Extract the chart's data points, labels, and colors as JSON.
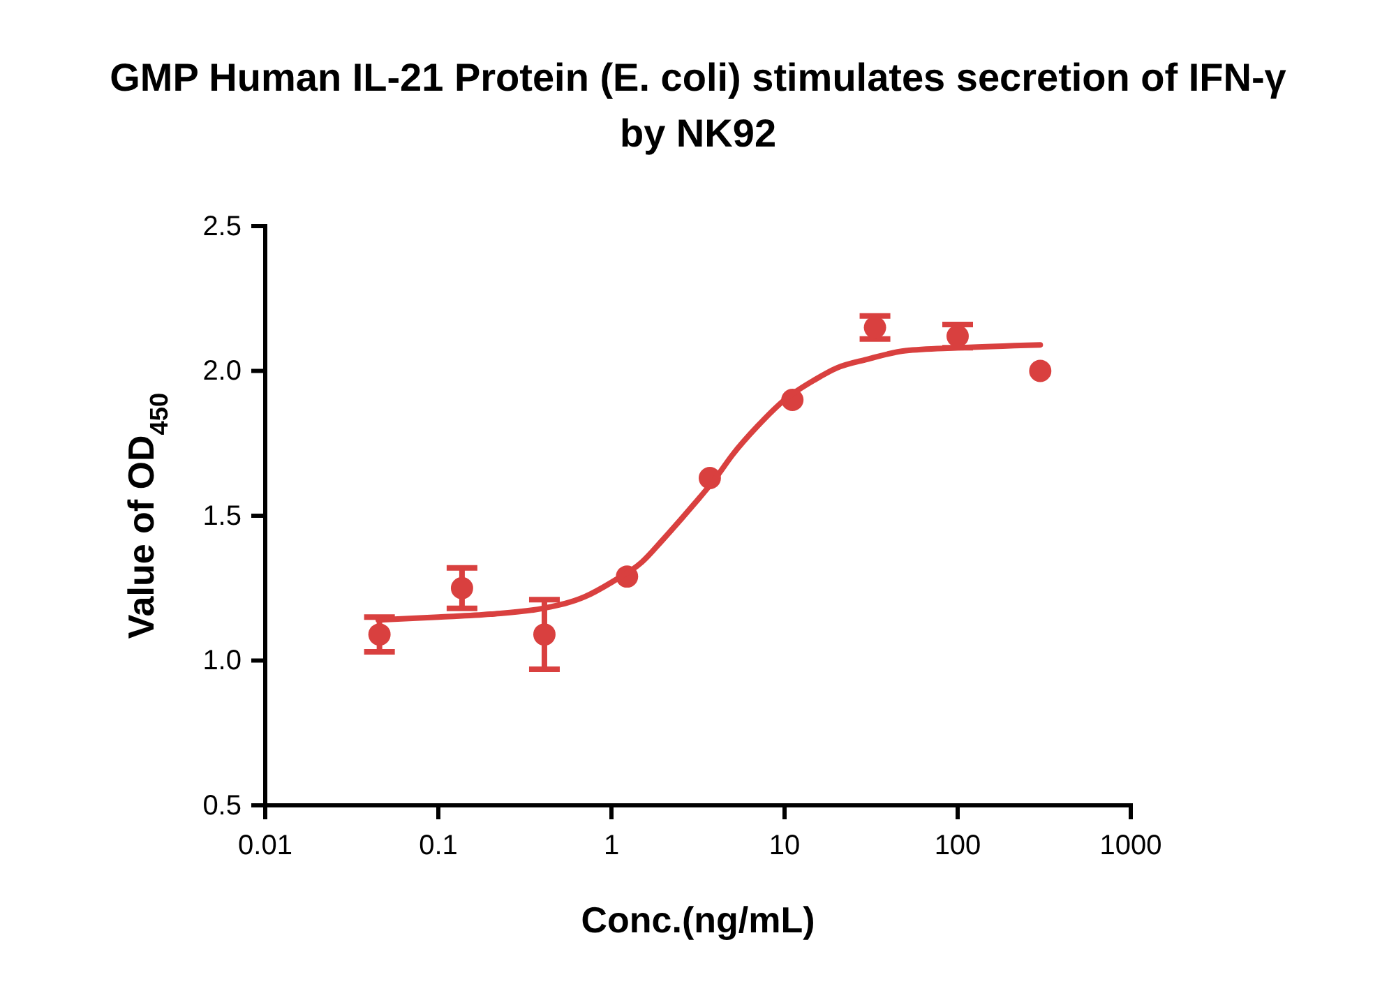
{
  "chart_data": {
    "type": "scatter",
    "title": "GMP Human IL-21 Protein (E. coli) stimulates secretion of IFN-γ by NK92",
    "xlabel": "Conc.(ng/mL)",
    "ylabel": "Value of OD$_{450}$",
    "log": "x",
    "xlim": [
      0.01,
      1000
    ],
    "xticks": [
      0.01,
      0.1,
      1,
      10,
      100,
      1000
    ],
    "ylim": [
      0.5,
      2.5
    ],
    "yticks": [
      {
        "value": 0.5,
        "label": "0.5"
      },
      {
        "value": 1,
        "label": "1.0"
      },
      {
        "value": 1.5,
        "label": "1.5"
      },
      {
        "value": 2,
        "label": "2.0"
      },
      {
        "value": 2.5,
        "label": "2.5"
      }
    ],
    "marker": "circle",
    "grid": false,
    "series": [
      {
        "color": "#d9403f",
        "x": [
          0.0457,
          0.137,
          0.41,
          1.23,
          3.7,
          11.1,
          33.3,
          100,
          300
        ],
        "values": [
          1.09,
          1.25,
          1.09,
          1.29,
          1.63,
          1.9,
          2.15,
          2.12,
          2.0
        ],
        "errors": [
          0.06,
          0.07,
          0.12,
          null,
          null,
          null,
          0.04,
          0.04,
          null
        ]
      },
      {
        "type": "line",
        "color": "#d9403f",
        "marker": "none",
        "x": [
          0.045,
          0.1,
          0.2,
          0.4,
          0.7,
          1,
          1.5,
          2,
          3,
          4,
          5,
          7,
          10,
          15,
          20,
          30,
          50,
          100,
          300
        ],
        "values": [
          1.14,
          1.15,
          1.16,
          1.18,
          1.22,
          1.27,
          1.34,
          1.42,
          1.54,
          1.63,
          1.71,
          1.81,
          1.9,
          1.97,
          2.01,
          2.04,
          2.07,
          2.08,
          2.09
        ]
      }
    ]
  }
}
